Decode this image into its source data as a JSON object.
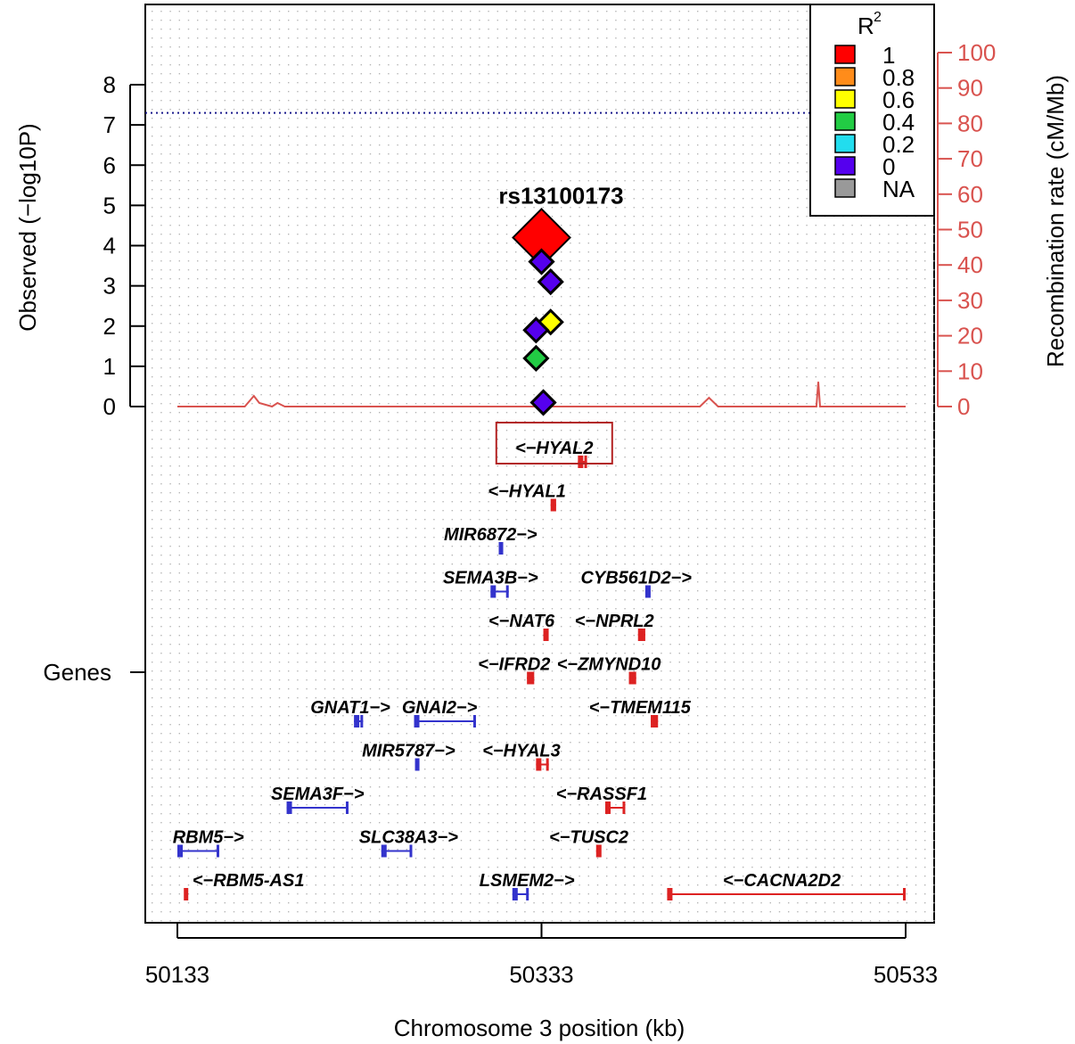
{
  "chart_data": {
    "type": "scatter",
    "title": "",
    "xlabel": "Chromosome 3 position (kb)",
    "ylabel": "Observed (−log10P)",
    "ylabel_right": "Recombination rate (cM/Mb)",
    "xlim": [
      50125,
      50545
    ],
    "xticks": [
      "50133",
      "50333",
      "50533"
    ],
    "ylim": [
      0,
      8
    ],
    "yticks": [
      "0",
      "1",
      "2",
      "3",
      "4",
      "5",
      "6",
      "7",
      "8"
    ],
    "right_ylim": [
      0,
      100
    ],
    "right_yticks": [
      "0",
      "10",
      "20",
      "30",
      "40",
      "50",
      "60",
      "70",
      "80",
      "90",
      "100"
    ],
    "genome_wide_significance": 7.3,
    "gene_track_label": "Genes",
    "top_snp_label": "rs13100173",
    "legend": {
      "title": "R",
      "title_superscript": "2",
      "position": "top-right",
      "entries": [
        {
          "label": "1",
          "color": "#ff0000"
        },
        {
          "label": "0.8",
          "color": "#ff8c1a"
        },
        {
          "label": "0.6",
          "color": "#ffff00"
        },
        {
          "label": "0.4",
          "color": "#22cc44"
        },
        {
          "label": "0.2",
          "color": "#22ddee"
        },
        {
          "label": "0",
          "color": "#5500ee"
        },
        {
          "label": "NA",
          "color": "#999999"
        }
      ]
    },
    "snps": [
      {
        "x": 50333,
        "y": 4.2,
        "r2": "1",
        "color": "#ff0000",
        "lead": true
      },
      {
        "x": 50333,
        "y": 3.6,
        "r2": "0",
        "color": "#5500ee"
      },
      {
        "x": 50338,
        "y": 3.1,
        "r2": "0",
        "color": "#5500ee"
      },
      {
        "x": 50338,
        "y": 2.1,
        "r2": "0.6",
        "color": "#ffff00"
      },
      {
        "x": 50330,
        "y": 1.9,
        "r2": "0",
        "color": "#5500ee"
      },
      {
        "x": 50330,
        "y": 1.2,
        "r2": "0.4",
        "color": "#22cc44"
      },
      {
        "x": 50334,
        "y": 0.1,
        "r2": "0",
        "color": "#5500ee"
      }
    ],
    "recombination": [
      {
        "x": 50133,
        "y": 0
      },
      {
        "x": 50170,
        "y": 0
      },
      {
        "x": 50175,
        "y": 3
      },
      {
        "x": 50178,
        "y": 1
      },
      {
        "x": 50185,
        "y": 0
      },
      {
        "x": 50188,
        "y": 1
      },
      {
        "x": 50192,
        "y": 0
      },
      {
        "x": 50420,
        "y": 0
      },
      {
        "x": 50425,
        "y": 2.5
      },
      {
        "x": 50430,
        "y": 0
      },
      {
        "x": 50484,
        "y": 0
      },
      {
        "x": 50485,
        "y": 7
      },
      {
        "x": 50486,
        "y": 0
      },
      {
        "x": 50525,
        "y": 0
      },
      {
        "x": 50533,
        "y": 0
      }
    ],
    "genes": [
      {
        "label": "<−HYAL2",
        "start": 50353,
        "end": 50358,
        "row": 1,
        "color": "#dd2222",
        "label_x": 50340,
        "highlight": true
      },
      {
        "label": "<−HYAL1",
        "start": 50338,
        "end": 50341,
        "row": 2,
        "color": "#dd2222",
        "label_x": 50325
      },
      {
        "label": "MIR6872−>",
        "start": 50310,
        "end": 50310,
        "row": 3,
        "color": "#3333cc",
        "label_x": 50305
      },
      {
        "label": "SEMA3B−>",
        "start": 50305,
        "end": 50315,
        "row": 4,
        "color": "#3333cc",
        "label_x": 50305
      },
      {
        "label": "CYB561D2−>",
        "start": 50390,
        "end": 50392,
        "row": 4,
        "color": "#3333cc",
        "label_x": 50385
      },
      {
        "label": "<−NAT6",
        "start": 50334,
        "end": 50336,
        "row": 5,
        "color": "#dd2222",
        "label_x": 50322
      },
      {
        "label": "<−NPRL2",
        "start": 50386,
        "end": 50390,
        "row": 5,
        "color": "#dd2222",
        "label_x": 50373
      },
      {
        "label": "<−IFRD2",
        "start": 50325,
        "end": 50329,
        "row": 6,
        "color": "#dd2222",
        "label_x": 50318
      },
      {
        "label": "<−ZMYND10",
        "start": 50381,
        "end": 50385,
        "row": 6,
        "color": "#dd2222",
        "label_x": 50370
      },
      {
        "label": "GNAT1−>",
        "start": 50230,
        "end": 50235,
        "row": 7,
        "color": "#3333cc",
        "label_x": 50228
      },
      {
        "label": "GNAI2−>",
        "start": 50263,
        "end": 50297,
        "row": 7,
        "color": "#3333cc",
        "label_x": 50277
      },
      {
        "label": "<−TMEM115",
        "start": 50393,
        "end": 50397,
        "row": 7,
        "color": "#dd2222",
        "label_x": 50387
      },
      {
        "label": "MIR5787−>",
        "start": 50264,
        "end": 50264,
        "row": 8,
        "color": "#3333cc",
        "label_x": 50260
      },
      {
        "label": "<−HYAL3",
        "start": 50330,
        "end": 50337,
        "row": 8,
        "color": "#dd2222",
        "label_x": 50322
      },
      {
        "label": "SEMA3F−>",
        "start": 50193,
        "end": 50227,
        "row": 9,
        "color": "#3333cc",
        "label_x": 50210
      },
      {
        "label": "<−RASSF1",
        "start": 50368,
        "end": 50379,
        "row": 9,
        "color": "#dd2222",
        "label_x": 50366
      },
      {
        "label": "RBM5−>",
        "start": 50133,
        "end": 50156,
        "row": 10,
        "color": "#3333cc",
        "label_x": 50150
      },
      {
        "label": "SLC38A3−>",
        "start": 50245,
        "end": 50262,
        "row": 10,
        "color": "#3333cc",
        "label_x": 50260
      },
      {
        "label": "<−TUSC2",
        "start": 50363,
        "end": 50365,
        "row": 10,
        "color": "#dd2222",
        "label_x": 50359
      },
      {
        "label": "<−RBM5-AS1",
        "start": 50137,
        "end": 50138,
        "row": 11,
        "color": "#dd2222",
        "label_x": 50172
      },
      {
        "label": "LSMEM2−>",
        "start": 50317,
        "end": 50326,
        "row": 11,
        "color": "#3333cc",
        "label_x": 50325
      },
      {
        "label": "<−CACNA2D2",
        "start": 50402,
        "end": 50533,
        "row": 11,
        "color": "#dd2222",
        "label_x": 50465
      }
    ]
  }
}
